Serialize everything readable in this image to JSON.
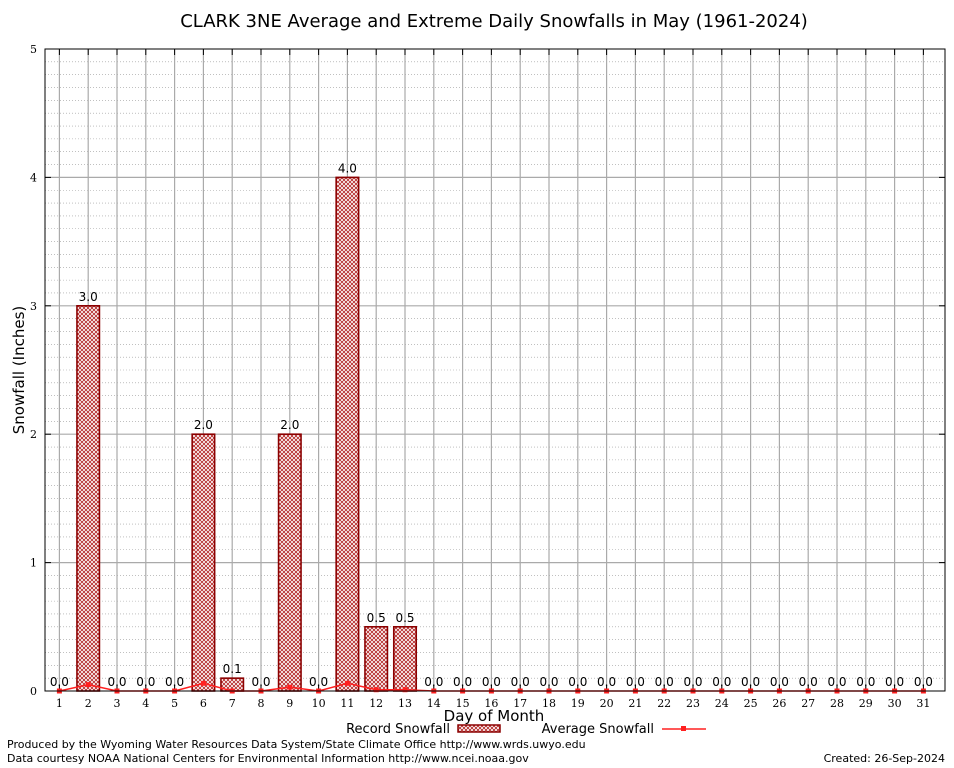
{
  "chart_data": {
    "type": "bar",
    "title": "CLARK 3NE Average and Extreme Daily Snowfalls in May (1961-2024)",
    "xlabel": "Day of Month",
    "ylabel": "Snowfall (Inches)",
    "ylim": [
      0,
      5
    ],
    "yticks": [
      "0",
      "1",
      "2",
      "3",
      "4",
      "5"
    ],
    "categories": [
      "1",
      "2",
      "3",
      "4",
      "5",
      "6",
      "7",
      "8",
      "9",
      "10",
      "11",
      "12",
      "13",
      "14",
      "15",
      "16",
      "17",
      "18",
      "19",
      "20",
      "21",
      "22",
      "23",
      "24",
      "25",
      "26",
      "27",
      "28",
      "29",
      "30",
      "31"
    ],
    "series": [
      {
        "name": "Record Snowfall",
        "kind": "bar",
        "values": [
          0.0,
          3.0,
          0.0,
          0.0,
          0.0,
          2.0,
          0.1,
          0.0,
          2.0,
          0.0,
          4.0,
          0.5,
          0.5,
          0.0,
          0.0,
          0.0,
          0.0,
          0.0,
          0.0,
          0.0,
          0.0,
          0.0,
          0.0,
          0.0,
          0.0,
          0.0,
          0.0,
          0.0,
          0.0,
          0.0,
          0.0
        ],
        "labels": [
          "0.0",
          "3.0",
          "0.0",
          "0.0",
          "0.0",
          "2.0",
          "0.1",
          "0.0",
          "2.0",
          "0.0",
          "4.0",
          "0.5",
          "0.5",
          "0.0",
          "0.0",
          "0.0",
          "0.0",
          "0.0",
          "0.0",
          "0.0",
          "0.0",
          "0.0",
          "0.0",
          "0.0",
          "0.0",
          "0.0",
          "0.0",
          "0.0",
          "0.0",
          "0.0",
          "0.0"
        ]
      },
      {
        "name": "Average Snowfall",
        "kind": "line",
        "values": [
          0.0,
          0.05,
          0.0,
          0.0,
          0.0,
          0.06,
          0.0,
          0.0,
          0.03,
          0.0,
          0.06,
          0.01,
          0.01,
          0.0,
          0.0,
          0.0,
          0.0,
          0.0,
          0.0,
          0.0,
          0.0,
          0.0,
          0.0,
          0.0,
          0.0,
          0.0,
          0.0,
          0.0,
          0.0,
          0.0,
          0.0
        ]
      }
    ],
    "grid": true,
    "legend_position": "bottom-center",
    "colors": {
      "bar_stroke": "#8b0000",
      "bar_hatch": "#b22222",
      "line": "#ff2020",
      "grid": "#aaaaaa"
    }
  },
  "footer": {
    "produced_by": "Produced by the Wyoming Water Resources Data System/State Climate Office http://www.wrds.uwyo.edu",
    "data_courtesy": "Data courtesy NOAA National Centers for Environmental Information http://www.ncei.noaa.gov",
    "created": "Created:  26-Sep-2024"
  }
}
